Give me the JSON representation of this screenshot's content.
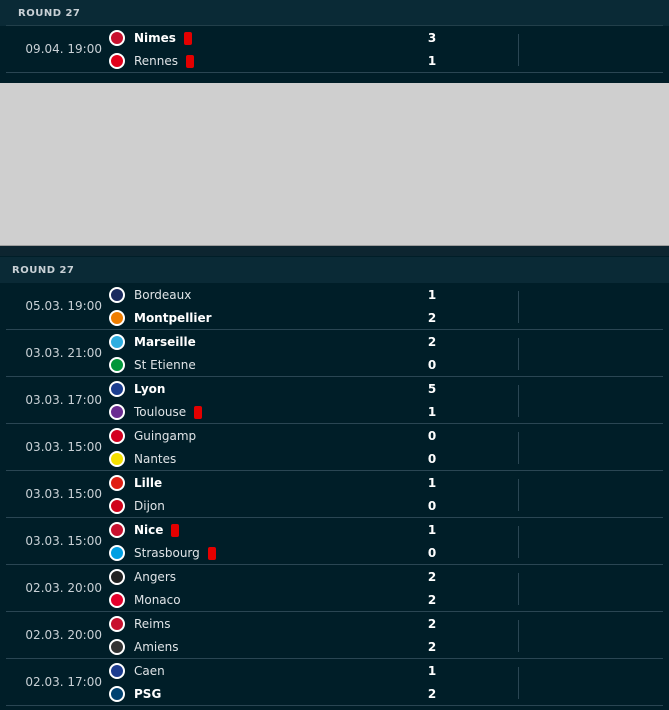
{
  "round1": {
    "label": "ROUND 27",
    "matches": [
      {
        "time": "09.04. 19:00",
        "home": "Nimes",
        "away": "Rennes",
        "home_score": "3",
        "away_score": "1",
        "home_bold": true,
        "away_bold": false,
        "home_red": true,
        "away_red": true,
        "home_color": "#c8102e",
        "away_color": "#e2001a"
      }
    ]
  },
  "round2": {
    "label": "ROUND 27",
    "matches": [
      {
        "time": "05.03. 19:00",
        "home": "Bordeaux",
        "away": "Montpellier",
        "home_score": "1",
        "away_score": "2",
        "home_bold": false,
        "away_bold": true,
        "home_red": false,
        "away_red": false,
        "home_color": "#1b2a5e",
        "away_color": "#ef7d00"
      },
      {
        "time": "03.03. 21:00",
        "home": "Marseille",
        "away": "St Etienne",
        "home_score": "2",
        "away_score": "0",
        "home_bold": true,
        "away_bold": false,
        "home_red": false,
        "away_red": false,
        "home_color": "#2faee0",
        "away_color": "#009639"
      },
      {
        "time": "03.03. 17:00",
        "home": "Lyon",
        "away": "Toulouse",
        "home_score": "5",
        "away_score": "1",
        "home_bold": true,
        "away_bold": false,
        "home_red": false,
        "away_red": true,
        "home_color": "#1a3d8f",
        "away_color": "#6b2c91"
      },
      {
        "time": "03.03. 15:00",
        "home": "Guingamp",
        "away": "Nantes",
        "home_score": "0",
        "away_score": "0",
        "home_bold": false,
        "away_bold": false,
        "home_red": false,
        "away_red": false,
        "home_color": "#d4001f",
        "away_color": "#f5e000"
      },
      {
        "time": "03.03. 15:00",
        "home": "Lille",
        "away": "Dijon",
        "home_score": "1",
        "away_score": "0",
        "home_bold": true,
        "away_bold": false,
        "home_red": false,
        "away_red": false,
        "home_color": "#e01e13",
        "away_color": "#d0021b"
      },
      {
        "time": "03.03. 15:00",
        "home": "Nice",
        "away": "Strasbourg",
        "home_score": "1",
        "away_score": "0",
        "home_bold": true,
        "away_bold": false,
        "home_red": true,
        "away_red": true,
        "home_color": "#c8102e",
        "away_color": "#009fe3"
      },
      {
        "time": "02.03. 20:00",
        "home": "Angers",
        "away": "Monaco",
        "home_score": "2",
        "away_score": "2",
        "home_bold": false,
        "away_bold": false,
        "home_red": false,
        "away_red": false,
        "home_color": "#222222",
        "away_color": "#e4002b"
      },
      {
        "time": "02.03. 20:00",
        "home": "Reims",
        "away": "Amiens",
        "home_score": "2",
        "away_score": "2",
        "home_bold": false,
        "away_bold": false,
        "home_red": false,
        "away_red": false,
        "home_color": "#c8102e",
        "away_color": "#333333"
      },
      {
        "time": "02.03. 17:00",
        "home": "Caen",
        "away": "PSG",
        "home_score": "1",
        "away_score": "2",
        "home_bold": false,
        "away_bold": true,
        "home_red": false,
        "away_red": false,
        "home_color": "#1d3c8f",
        "away_color": "#004170"
      }
    ]
  }
}
